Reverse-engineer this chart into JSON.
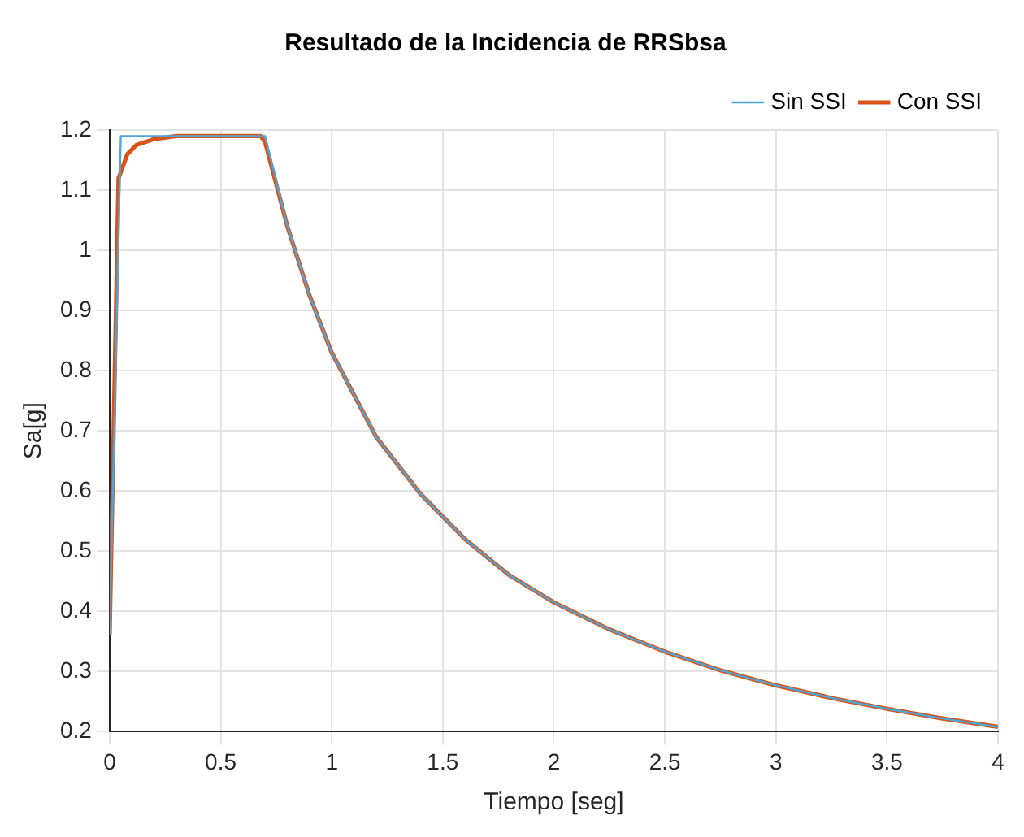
{
  "chart_data": {
    "type": "line",
    "title": "Resultado de la Incidencia de RRSbsa",
    "xlabel": "Tiempo [seg]",
    "ylabel": "Sa[g]",
    "xlim": [
      0,
      4
    ],
    "xticks": [
      0,
      0.5,
      1,
      1.5,
      2,
      2.5,
      3,
      3.5,
      4
    ],
    "ylim": [
      0.2,
      1.2
    ],
    "yticks": [
      0.2,
      0.3,
      0.4,
      0.5,
      0.6,
      0.7,
      0.8,
      0.9,
      1,
      1.1,
      1.2
    ],
    "grid": true,
    "legend": "top right",
    "marker": "none",
    "line_style": "solid",
    "series": [
      {
        "name": "Sin SSI",
        "color": "#4ea6d8",
        "x": [
          0,
          0.05,
          0.7,
          0.8,
          0.9,
          1,
          1.2,
          1.4,
          1.6,
          1.8,
          2,
          2.25,
          2.5,
          2.75,
          3,
          3.25,
          3.5,
          3.75,
          4
        ],
        "values": [
          0.36,
          1.19,
          1.19,
          1.04,
          0.925,
          0.83,
          0.69,
          0.595,
          0.52,
          0.46,
          0.415,
          0.37,
          0.333,
          0.302,
          0.277,
          0.256,
          0.238,
          0.222,
          0.208
        ]
      },
      {
        "name": "Con SSI",
        "color": "#d95319",
        "x": [
          0,
          0.04,
          0.08,
          0.12,
          0.2,
          0.3,
          0.68,
          0.7,
          0.8,
          0.9,
          1,
          1.2,
          1.4,
          1.6,
          1.8,
          2,
          2.25,
          2.5,
          2.75,
          3,
          3.25,
          3.5,
          3.75,
          4
        ],
        "values": [
          0.36,
          1.12,
          1.16,
          1.175,
          1.185,
          1.19,
          1.19,
          1.18,
          1.04,
          0.925,
          0.83,
          0.69,
          0.595,
          0.52,
          0.46,
          0.415,
          0.37,
          0.333,
          0.302,
          0.277,
          0.256,
          0.238,
          0.222,
          0.208
        ]
      }
    ]
  }
}
